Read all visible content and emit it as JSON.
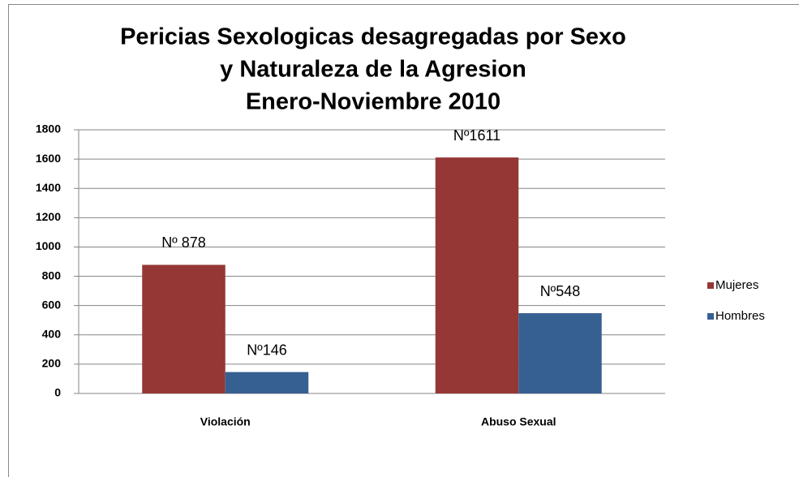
{
  "chart_data": {
    "type": "bar",
    "title": [
      "Pericias Sexologicas desagregadas por Sexo",
      "y Naturaleza de la Agresion",
      "Enero-Noviembre 2010"
    ],
    "categories": [
      "Violación",
      "Abuso Sexual"
    ],
    "series": [
      {
        "name": "Mujeres",
        "color": "#953735",
        "values": [
          878,
          1611
        ],
        "value_labels": [
          "Nº 878",
          "Nº1611"
        ]
      },
      {
        "name": "Hombres",
        "color": "#376092",
        "values": [
          146,
          548
        ],
        "value_labels": [
          "Nº146",
          "Nº548"
        ]
      }
    ],
    "ylim": [
      0,
      1800
    ],
    "yticks": [
      0,
      200,
      400,
      600,
      800,
      1000,
      1200,
      1400,
      1600,
      1800
    ],
    "grid": true,
    "legend": "right"
  }
}
